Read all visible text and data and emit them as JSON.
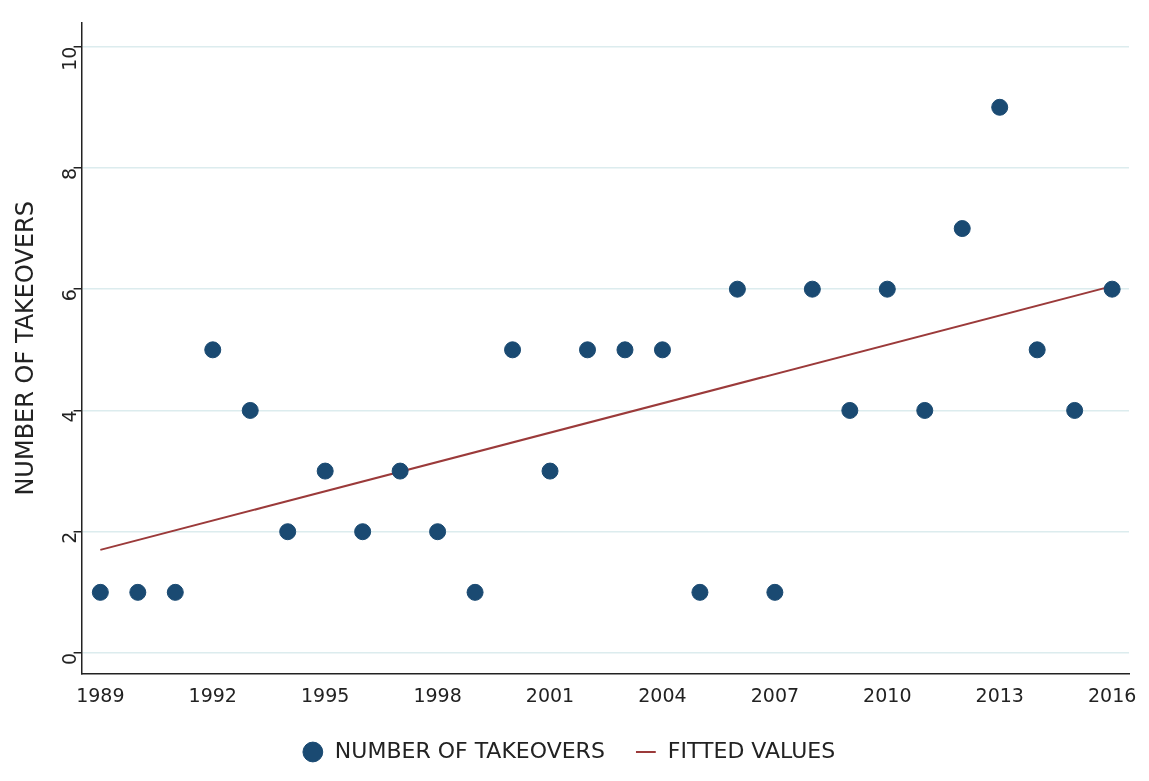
{
  "chart_data": {
    "type": "scatter",
    "ylabel": "NUMBER OF TAKEOVERS",
    "xlim": [
      1988.5,
      2016.45
    ],
    "xticks": [
      1989,
      1992,
      1995,
      1998,
      2001,
      2004,
      2007,
      2010,
      2013,
      2016
    ],
    "ylim": [
      -0.35,
      10.4
    ],
    "yticks": [
      0,
      2,
      4,
      6,
      8,
      10
    ],
    "grid": "y",
    "legend": "bottom",
    "series": [
      {
        "name": "NUMBER OF TAKEOVERS",
        "type": "scatter",
        "marker": "circle",
        "color": "#1a4a72",
        "x": [
          1989,
          1990,
          1991,
          1992,
          1993,
          1994,
          1995,
          1996,
          1997,
          1998,
          1999,
          2000,
          2001,
          2002,
          2003,
          2004,
          2005,
          2006,
          2007,
          2008,
          2009,
          2010,
          2011,
          2012,
          2013,
          2014,
          2015,
          2016
        ],
        "values": [
          1,
          1,
          1,
          5,
          4,
          2,
          3,
          2,
          3,
          2,
          1,
          5,
          3,
          5,
          5,
          5,
          1,
          6,
          1,
          6,
          4,
          6,
          4,
          7,
          9,
          5,
          4,
          6
        ]
      },
      {
        "name": "FITTED VALUES",
        "type": "line",
        "color": "#9b3a3a",
        "x": [
          1989,
          2016
        ],
        "values": [
          1.7,
          6.05
        ]
      }
    ]
  }
}
